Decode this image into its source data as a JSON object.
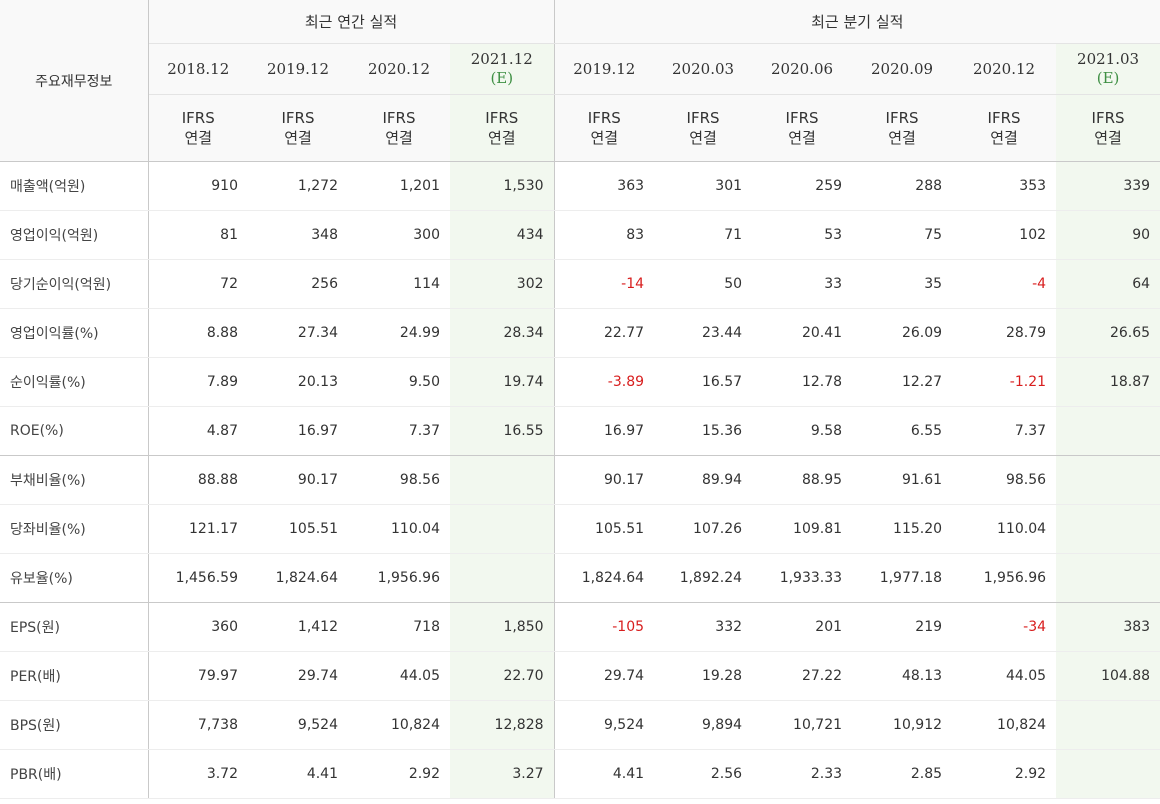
{
  "header": {
    "corner_label": "주요재무정보",
    "annual_group": "최근 연간 실적",
    "quarter_group": "최근 분기 실적",
    "periods": [
      {
        "date": "2018.12",
        "est": ""
      },
      {
        "date": "2019.12",
        "est": ""
      },
      {
        "date": "2020.12",
        "est": ""
      },
      {
        "date": "2021.12",
        "est": "(E)"
      },
      {
        "date": "2019.12",
        "est": ""
      },
      {
        "date": "2020.03",
        "est": ""
      },
      {
        "date": "2020.06",
        "est": ""
      },
      {
        "date": "2020.09",
        "est": ""
      },
      {
        "date": "2020.12",
        "est": ""
      },
      {
        "date": "2021.03",
        "est": "(E)"
      }
    ],
    "standard_line1": "IFRS",
    "standard_line2": "연결"
  },
  "rows": [
    {
      "label": "매출액(억원)",
      "values": [
        "910",
        "1,272",
        "1,201",
        "1,530",
        "363",
        "301",
        "259",
        "288",
        "353",
        "339"
      ]
    },
    {
      "label": "영업이익(억원)",
      "values": [
        "81",
        "348",
        "300",
        "434",
        "83",
        "71",
        "53",
        "75",
        "102",
        "90"
      ]
    },
    {
      "label": "당기순이익(억원)",
      "values": [
        "72",
        "256",
        "114",
        "302",
        "-14",
        "50",
        "33",
        "35",
        "-4",
        "64"
      ]
    },
    {
      "label": "영업이익률(%)",
      "values": [
        "8.88",
        "27.34",
        "24.99",
        "28.34",
        "22.77",
        "23.44",
        "20.41",
        "26.09",
        "28.79",
        "26.65"
      ]
    },
    {
      "label": "순이익률(%)",
      "values": [
        "7.89",
        "20.13",
        "9.50",
        "19.74",
        "-3.89",
        "16.57",
        "12.78",
        "12.27",
        "-1.21",
        "18.87"
      ]
    },
    {
      "label": "ROE(%)",
      "values": [
        "4.87",
        "16.97",
        "7.37",
        "16.55",
        "16.97",
        "15.36",
        "9.58",
        "6.55",
        "7.37",
        ""
      ]
    },
    {
      "label": "부채비율(%)",
      "values": [
        "88.88",
        "90.17",
        "98.56",
        "",
        "90.17",
        "89.94",
        "88.95",
        "91.61",
        "98.56",
        ""
      ]
    },
    {
      "label": "당좌비율(%)",
      "values": [
        "121.17",
        "105.51",
        "110.04",
        "",
        "105.51",
        "107.26",
        "109.81",
        "115.20",
        "110.04",
        ""
      ]
    },
    {
      "label": "유보율(%)",
      "values": [
        "1,456.59",
        "1,824.64",
        "1,956.96",
        "",
        "1,824.64",
        "1,892.24",
        "1,933.33",
        "1,977.18",
        "1,956.96",
        ""
      ]
    },
    {
      "label": "EPS(원)",
      "values": [
        "360",
        "1,412",
        "718",
        "1,850",
        "-105",
        "332",
        "201",
        "219",
        "-34",
        "383"
      ]
    },
    {
      "label": "PER(배)",
      "values": [
        "79.97",
        "29.74",
        "44.05",
        "22.70",
        "29.74",
        "19.28",
        "27.22",
        "48.13",
        "44.05",
        "104.88"
      ]
    },
    {
      "label": "BPS(원)",
      "values": [
        "7,738",
        "9,524",
        "10,824",
        "12,828",
        "9,524",
        "9,894",
        "10,721",
        "10,912",
        "10,824",
        ""
      ]
    },
    {
      "label": "PBR(배)",
      "values": [
        "3.72",
        "4.41",
        "2.92",
        "3.27",
        "4.41",
        "2.56",
        "2.33",
        "2.85",
        "2.92",
        ""
      ]
    }
  ]
}
